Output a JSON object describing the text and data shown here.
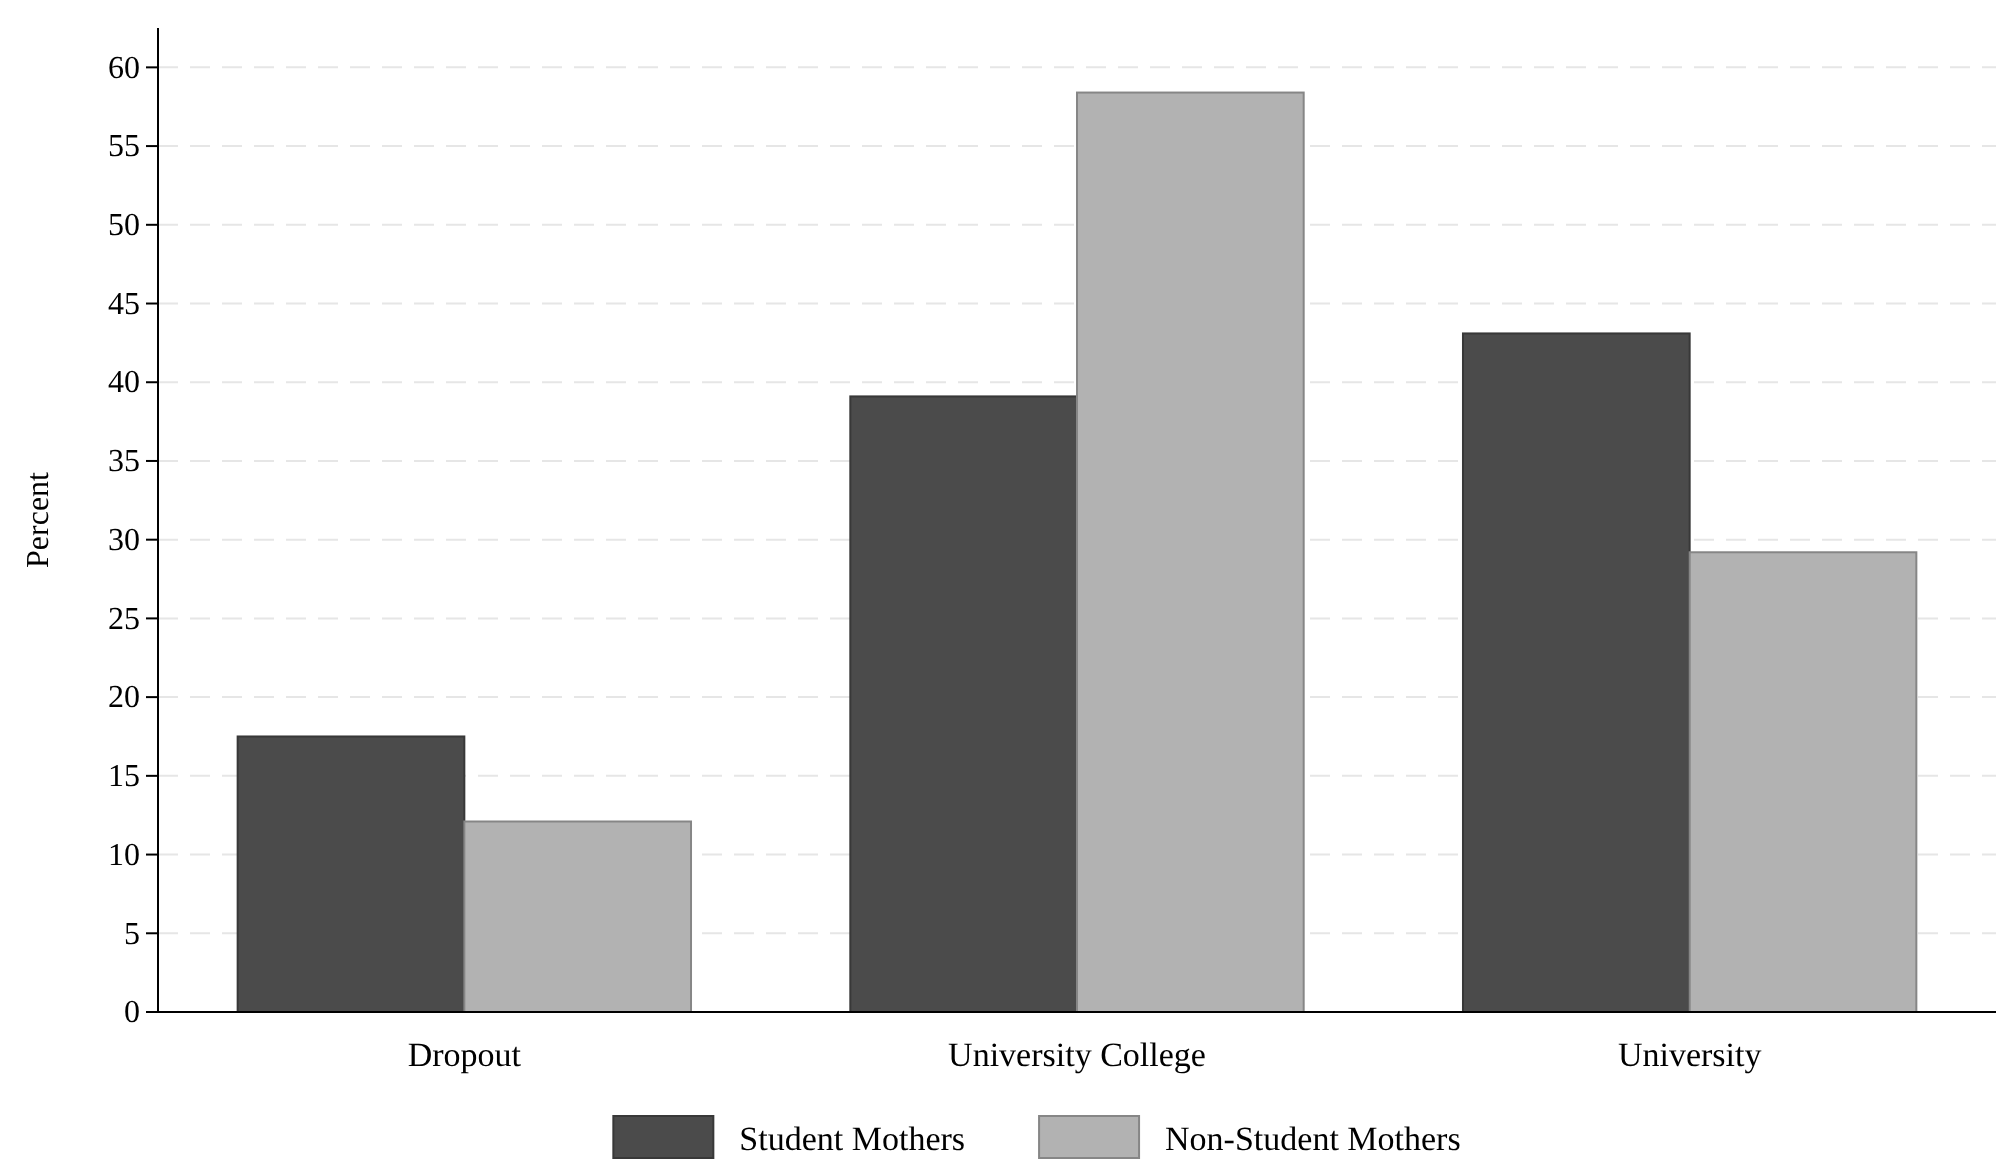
{
  "chart_data": {
    "type": "bar",
    "ylabel": "Percent",
    "categories": [
      "Dropout",
      "University College",
      "University"
    ],
    "series": [
      {
        "name": "Student Mothers",
        "color": "#4b4b4b",
        "values": [
          17.5,
          39.1,
          43.1
        ]
      },
      {
        "name": "Non-Student Mothers",
        "color": "#b2b2b2",
        "values": [
          12.1,
          58.4,
          29.2
        ]
      }
    ],
    "ylim": [
      0,
      62.5
    ],
    "yticks": [
      0,
      5,
      10,
      15,
      20,
      25,
      30,
      35,
      40,
      45,
      50,
      55,
      60
    ],
    "grid": "y",
    "legend": "bottom"
  }
}
